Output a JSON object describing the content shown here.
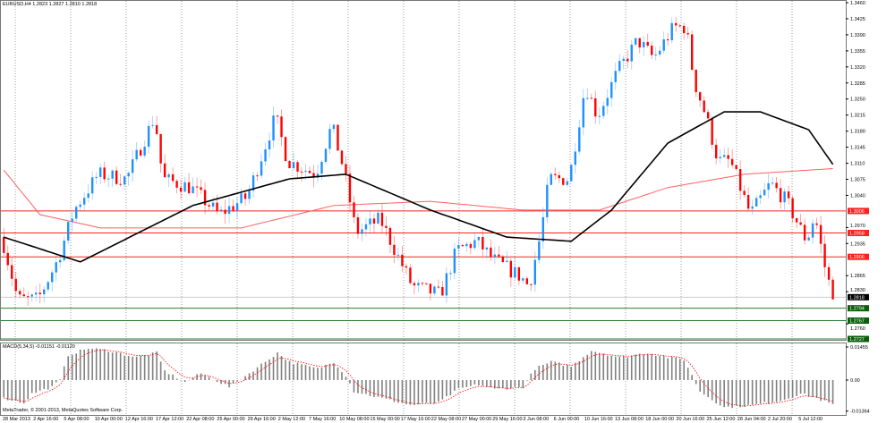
{
  "window": {
    "symbol_info": "EURUSD,H4  1.2823 1.2827 1.2810 1.2818",
    "indicator_info": "MACD(5,34,5) -0.01151 -0.01120",
    "copyright": "MetaTrader, © 2001-2013, MetaQuotes Software Corp."
  },
  "colors": {
    "bull": "#1e90ff",
    "bear": "#ff0000",
    "ma_slow": "#000000",
    "ma_fast": "#ff6060",
    "support": "#2e7d32",
    "resistance": "#ff2020",
    "grid": "#9a9a9a"
  },
  "chart_data": {
    "type": "candlestick",
    "timeframe": "H4",
    "price_axis": {
      "range": [
        1.2727,
        1.346
      ],
      "ticks": [
        "1.3460",
        "1.3425",
        "1.3390",
        "1.3355",
        "1.3320",
        "1.3285",
        "1.3250",
        "1.3215",
        "1.3180",
        "1.3145",
        "1.3110",
        "1.3075",
        "1.3040",
        "1.2970",
        "1.2935",
        "1.2865",
        "1.2830",
        "1.2760"
      ]
    },
    "time_axis": {
      "ticks": [
        "28 Mar 2013",
        "2 Apr 16:00",
        "5 Apr 08:00",
        "10 Apr 00:00",
        "12 Apr 16:00",
        "17 Apr 12:00",
        "22 Apr 08:00",
        "25 Apr 00:00",
        "29 Apr 16:00",
        "2 May 12:00",
        "7 May 16:00",
        "10 May 08:00",
        "15 May 00:00",
        "17 May 16:00",
        "22 May 08:00",
        "27 May 00:00",
        "29 May 16:00",
        "3 Jun 08:00",
        "6 Jun 00:00",
        "10 Jun 16:00",
        "13 Jun 08:00",
        "18 Jun 00:00",
        "20 Jun 16:00",
        "25 Jun 12:00",
        "28 Jun 04:00",
        "2 Jul 20:00",
        "5 Jul 12:00"
      ]
    },
    "bar_count": 207,
    "close_path": [
      [
        0,
        1.2949
      ],
      [
        4,
        1.2813
      ],
      [
        9,
        1.2813
      ],
      [
        14,
        1.2901
      ],
      [
        18,
        1.3008
      ],
      [
        24,
        1.3086
      ],
      [
        31,
        1.3076
      ],
      [
        38,
        1.3212
      ],
      [
        40,
        1.3076
      ],
      [
        47,
        1.3057
      ],
      [
        54,
        1.2998
      ],
      [
        61,
        1.3037
      ],
      [
        68,
        1.3212
      ],
      [
        71,
        1.3115
      ],
      [
        78,
        1.3086
      ],
      [
        82,
        1.3193
      ],
      [
        85,
        1.3095
      ],
      [
        88,
        1.2959
      ],
      [
        94,
        1.2988
      ],
      [
        102,
        1.2842
      ],
      [
        109,
        1.2823
      ],
      [
        113,
        1.292
      ],
      [
        118,
        1.294
      ],
      [
        122,
        1.2901
      ],
      [
        129,
        1.2862
      ],
      [
        131,
        1.2842
      ],
      [
        134,
        1.2959
      ],
      [
        136,
        1.3076
      ],
      [
        141,
        1.3076
      ],
      [
        145,
        1.3281
      ],
      [
        148,
        1.3212
      ],
      [
        153,
        1.331
      ],
      [
        158,
        1.3378
      ],
      [
        162,
        1.3339
      ],
      [
        167,
        1.3407
      ],
      [
        170,
        1.3407
      ],
      [
        172,
        1.329
      ],
      [
        175,
        1.3212
      ],
      [
        178,
        1.3115
      ],
      [
        181,
        1.3115
      ],
      [
        186,
        1.2998
      ],
      [
        191,
        1.3066
      ],
      [
        195,
        1.3027
      ],
      [
        200,
        1.294
      ],
      [
        202,
        1.2998
      ],
      [
        205,
        1.2862
      ],
      [
        207,
        1.2818
      ]
    ],
    "ma_slow": [
      [
        0,
        1.2949
      ],
      [
        19,
        1.2895
      ],
      [
        47,
        1.3018
      ],
      [
        71,
        1.3076
      ],
      [
        85,
        1.3086
      ],
      [
        106,
        1.3008
      ],
      [
        125,
        1.2949
      ],
      [
        141,
        1.294
      ],
      [
        151,
        1.3008
      ],
      [
        165,
        1.3154
      ],
      [
        179,
        1.3222
      ],
      [
        188,
        1.3222
      ],
      [
        200,
        1.3183
      ],
      [
        207,
        1.3095
      ]
    ],
    "ma_fast": [
      [
        0,
        1.3095
      ],
      [
        9,
        1.2998
      ],
      [
        24,
        1.2969
      ],
      [
        59,
        1.2969
      ],
      [
        82,
        1.3018
      ],
      [
        106,
        1.3027
      ],
      [
        129,
        1.3008
      ],
      [
        148,
        1.3008
      ],
      [
        165,
        1.3057
      ],
      [
        184,
        1.3086
      ],
      [
        207,
        1.3099
      ]
    ],
    "horizontal_levels": [
      {
        "price": "1.3006",
        "kind": "resistance"
      },
      {
        "price": "1.2958",
        "kind": "resistance"
      },
      {
        "price": "1.2906",
        "kind": "resistance"
      },
      {
        "price": "1.2818",
        "kind": "current"
      },
      {
        "price": "1.2794",
        "kind": "support"
      },
      {
        "price": "1.2767",
        "kind": "support"
      },
      {
        "price": "1.2727",
        "kind": "support"
      }
    ],
    "macd": {
      "ticks": [
        "0.01455",
        "0.00",
        "-0.01364"
      ],
      "range": [
        -0.01364,
        0.01455
      ],
      "path": [
        [
          0,
          -0.008
        ],
        [
          5,
          -0.01
        ],
        [
          7,
          -0.006
        ],
        [
          12,
          -0.003
        ],
        [
          14,
          0.0
        ],
        [
          16,
          0.011
        ],
        [
          21,
          0.014
        ],
        [
          26,
          0.013
        ],
        [
          33,
          0.01
        ],
        [
          38,
          0.012
        ],
        [
          40,
          0.004
        ],
        [
          45,
          -0.001
        ],
        [
          49,
          0.003
        ],
        [
          56,
          -0.003
        ],
        [
          61,
          0.003
        ],
        [
          68,
          0.012
        ],
        [
          71,
          0.008
        ],
        [
          78,
          0.005
        ],
        [
          82,
          0.008
        ],
        [
          85,
          0.002
        ],
        [
          87,
          -0.005
        ],
        [
          94,
          -0.008
        ],
        [
          101,
          -0.011
        ],
        [
          108,
          -0.01
        ],
        [
          113,
          -0.004
        ],
        [
          118,
          -0.002
        ],
        [
          122,
          -0.004
        ],
        [
          129,
          -0.003
        ],
        [
          132,
          0.005
        ],
        [
          136,
          0.008
        ],
        [
          141,
          0.006
        ],
        [
          146,
          0.013
        ],
        [
          153,
          0.01
        ],
        [
          160,
          0.012
        ],
        [
          165,
          0.01
        ],
        [
          169,
          0.009
        ],
        [
          173,
          -0.005
        ],
        [
          179,
          -0.012
        ],
        [
          186,
          -0.011
        ],
        [
          193,
          -0.009
        ],
        [
          198,
          -0.006
        ],
        [
          202,
          -0.008
        ],
        [
          207,
          -0.0115
        ]
      ]
    }
  }
}
